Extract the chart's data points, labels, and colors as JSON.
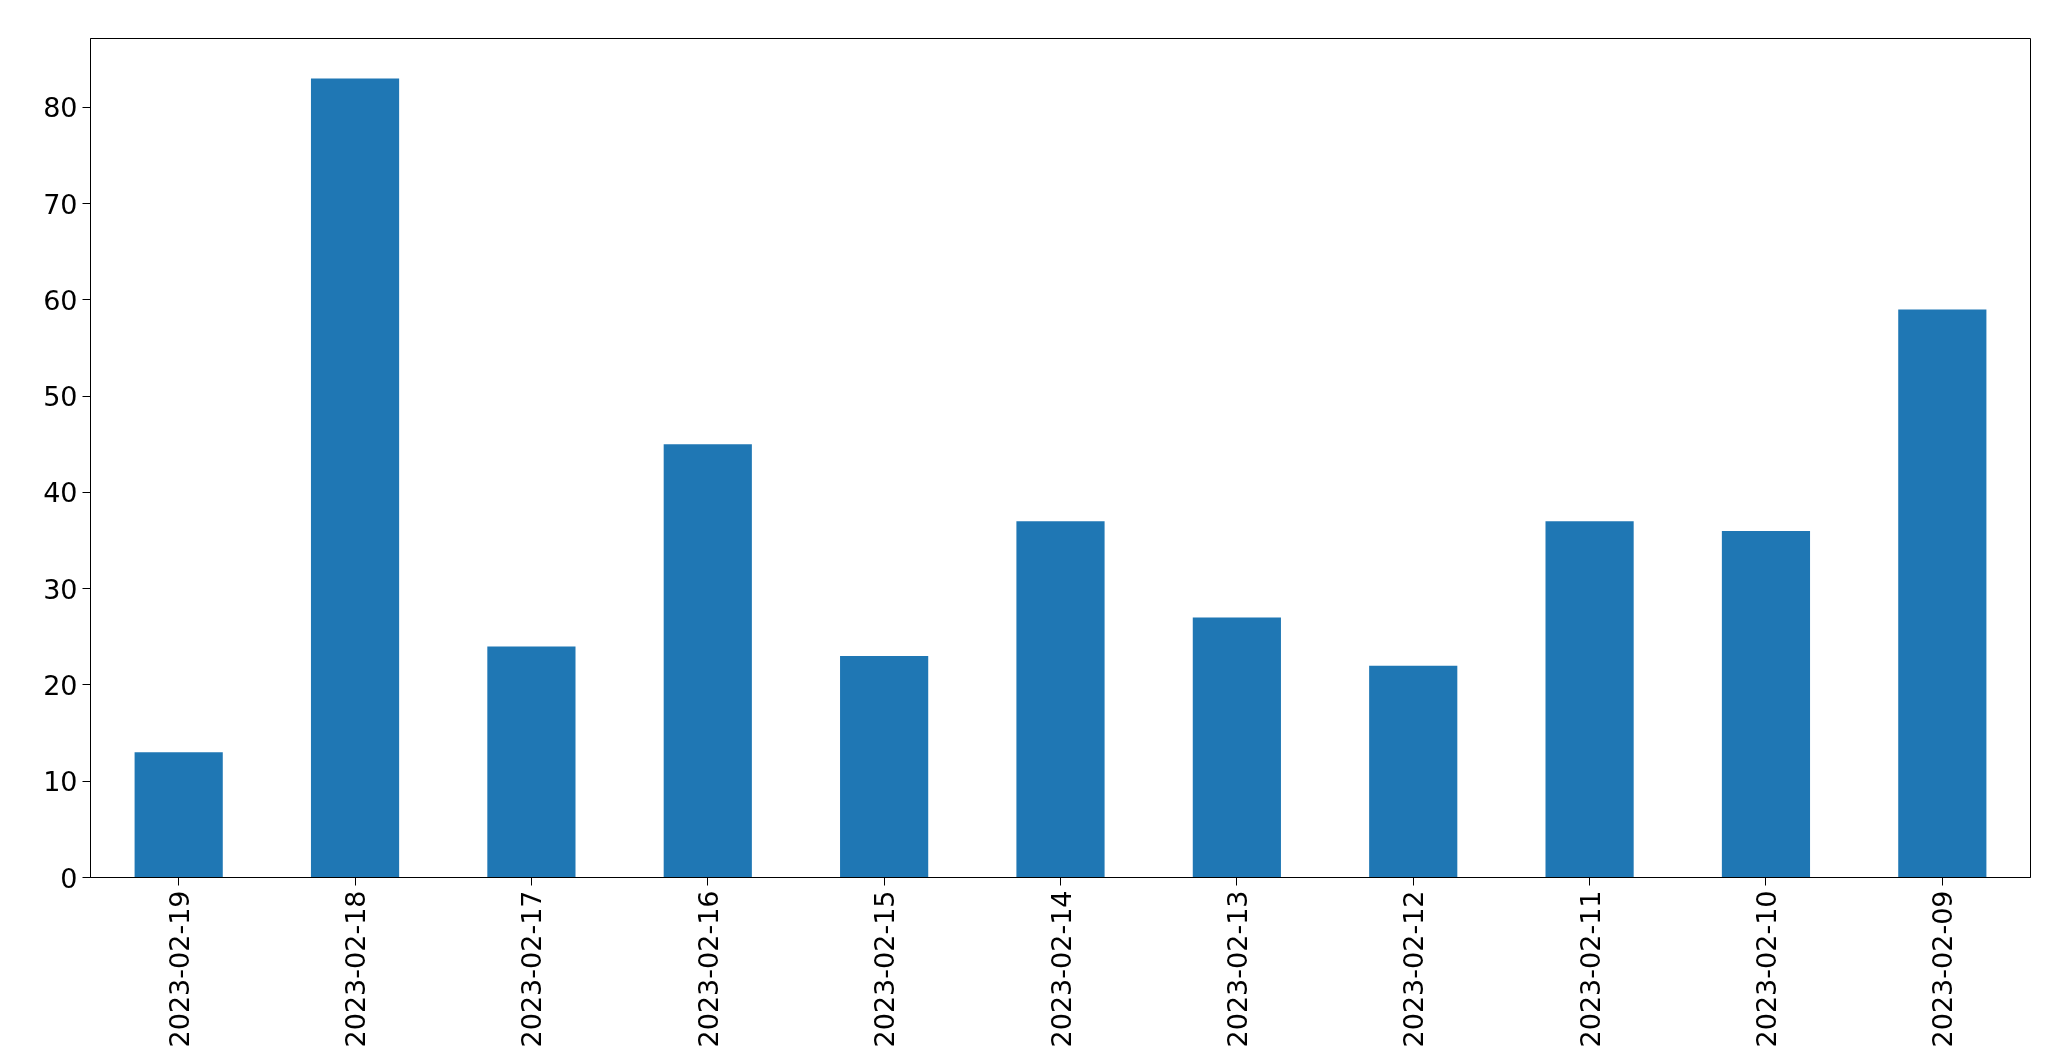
{
  "chart_data": {
    "type": "bar",
    "categories": [
      "2023-02-19",
      "2023-02-18",
      "2023-02-17",
      "2023-02-16",
      "2023-02-15",
      "2023-02-14",
      "2023-02-13",
      "2023-02-12",
      "2023-02-11",
      "2023-02-10",
      "2023-02-09"
    ],
    "values": [
      13,
      83,
      24,
      45,
      23,
      37,
      27,
      22,
      37,
      36,
      59
    ],
    "color": "#1f77b4",
    "ylim": [
      0,
      87.15
    ],
    "yticks": [
      0,
      10,
      20,
      30,
      40,
      50,
      60,
      70,
      80
    ],
    "grid": false
  }
}
